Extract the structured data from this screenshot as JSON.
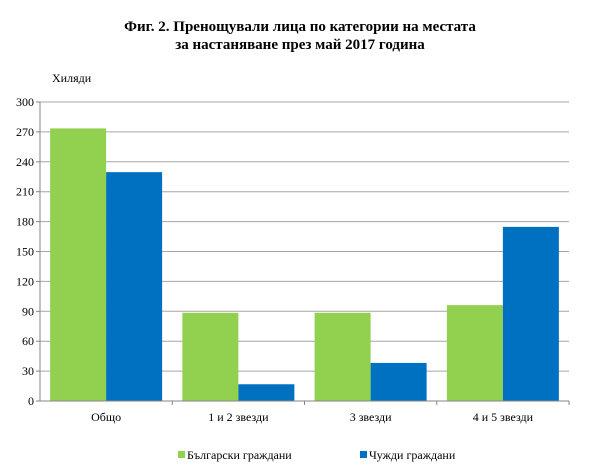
{
  "chart_data": {
    "type": "bar",
    "title_line1": "Фиг. 2. Пренощували лица по категории на местата",
    "title_line2": "за настаняване през май 2017 година",
    "ylabel": "Хиляди",
    "xlabel": "",
    "categories": [
      "Общо",
      "1 и 2 звезди",
      "3 звезди",
      "4 и 5 звезди"
    ],
    "ylim": [
      0,
      300
    ],
    "yticks": [
      0,
      30,
      60,
      90,
      120,
      150,
      180,
      210,
      240,
      270,
      300
    ],
    "grid": true,
    "legend_position": "bottom",
    "series": [
      {
        "name": "Български граждани",
        "color": "#92d050",
        "values": [
          273.5,
          88.5,
          88.5,
          96.2
        ]
      },
      {
        "name": "Чужди граждани",
        "color": "#0070c0",
        "values": [
          229.6,
          16.8,
          38.2,
          174.7
        ]
      }
    ]
  }
}
